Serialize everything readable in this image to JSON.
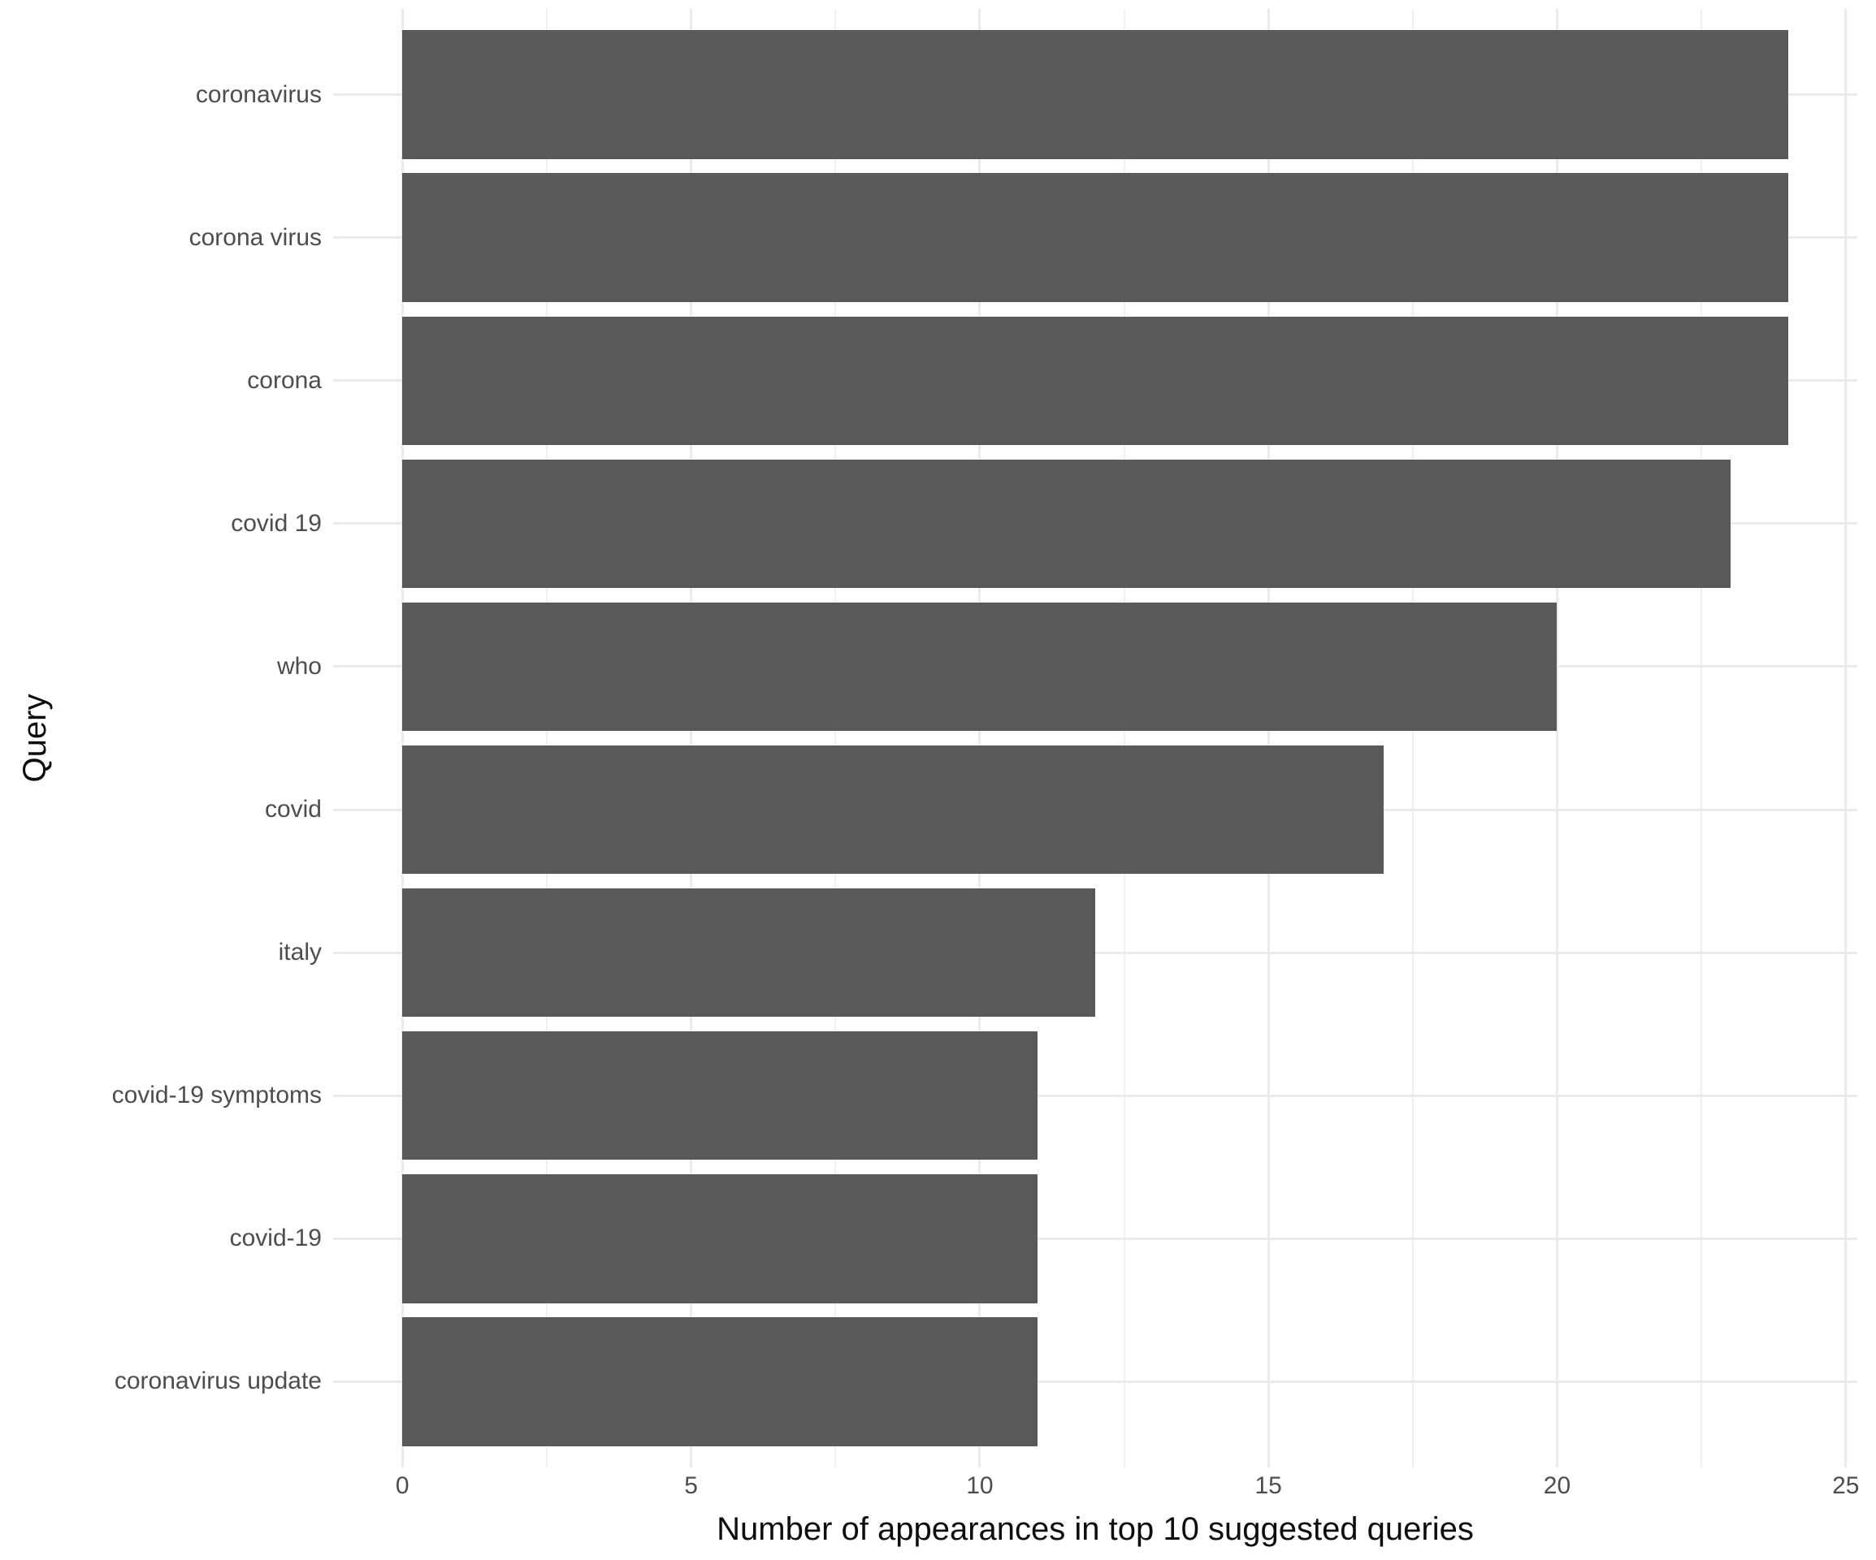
{
  "chart_data": {
    "type": "bar",
    "orientation": "horizontal",
    "title": "",
    "xlabel": "Number of appearances in top 10 suggested queries",
    "ylabel": "Query",
    "categories": [
      "coronavirus",
      "corona virus",
      "corona",
      "covid 19",
      "who",
      "covid",
      "italy",
      "covid-19 symptoms",
      "covid-19",
      "coronavirus update"
    ],
    "values": [
      24,
      24,
      24,
      23,
      20,
      17,
      12,
      11,
      11,
      11
    ],
    "x_ticks": [
      0,
      5,
      10,
      15,
      20,
      25
    ],
    "x_minor_ticks": [
      2.5,
      7.5,
      12.5,
      17.5,
      22.5
    ],
    "xlim_data": [
      0,
      24
    ],
    "xlim_expanded": [
      -1.2,
      25.2
    ],
    "bar_width_fraction": 0.9,
    "grid": "major-and-minor",
    "legend": "none"
  },
  "style": {
    "bar_color": "#595959",
    "grid_major_color": "#EBEBEB",
    "grid_minor_color": "#F0F0F0",
    "axis_text_color": "#4D4D4D",
    "axis_title_color": "#0d0d0d",
    "background_color": "#FFFFFF"
  }
}
